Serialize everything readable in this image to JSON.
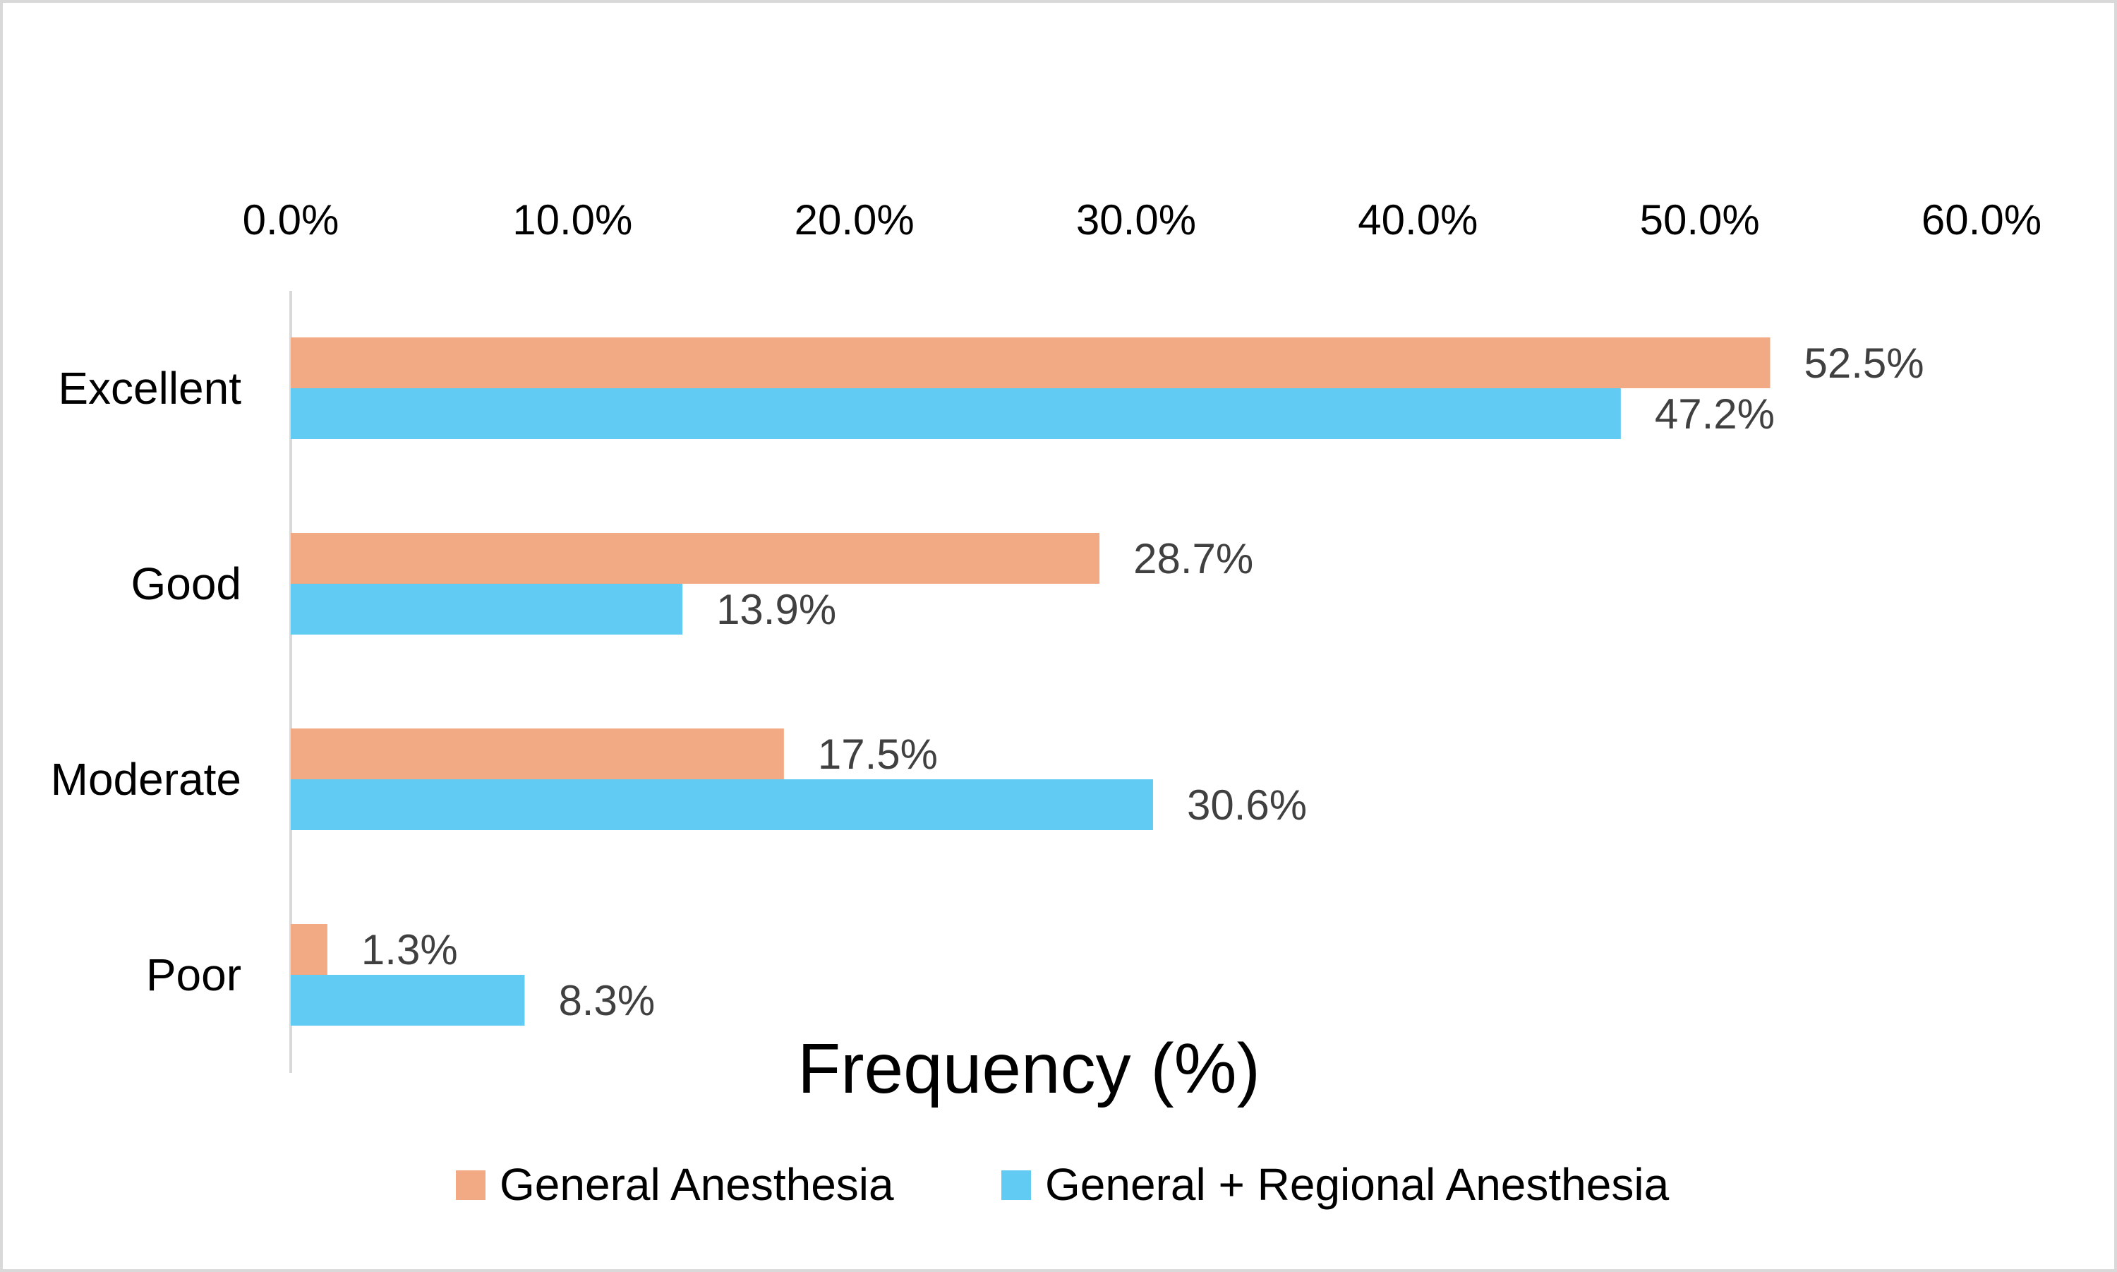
{
  "chart_data": {
    "type": "bar",
    "orientation": "horizontal",
    "categories": [
      "Excellent",
      "Good",
      "Moderate",
      "Poor"
    ],
    "series": [
      {
        "name": "General Anesthesia",
        "color": "#f2aa84",
        "values": [
          52.5,
          28.7,
          17.5,
          1.3
        ],
        "labels": [
          "52.5%",
          "28.7%",
          "17.5%",
          "1.3%"
        ]
      },
      {
        "name": "General + Regional Anesthesia",
        "color": "#61cbf3",
        "values": [
          47.2,
          13.9,
          30.6,
          8.3
        ],
        "labels": [
          "47.2%",
          "13.9%",
          "30.6%",
          "8.3%"
        ]
      }
    ],
    "x_ticks": [
      "0.0%",
      "10.0%",
      "20.0%",
      "30.0%",
      "40.0%",
      "50.0%",
      "60.0%"
    ],
    "xlim": [
      0,
      60
    ],
    "x_axis_position": "top",
    "xlabel": "Frequency (%)",
    "ylabel": "",
    "title": "",
    "grid": false,
    "legend_position": "bottom"
  }
}
